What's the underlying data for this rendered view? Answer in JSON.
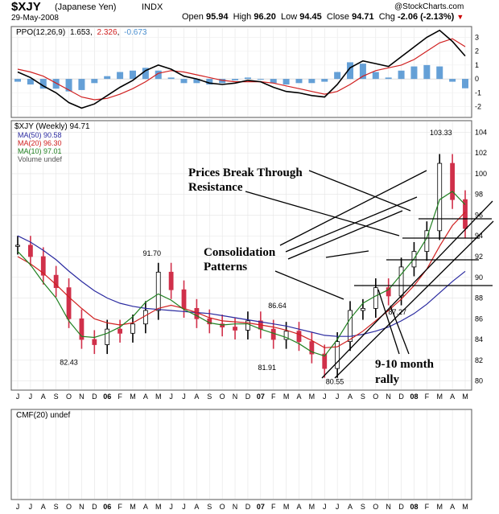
{
  "header": {
    "symbol": "$XJY",
    "name": "(Japanese Yen)",
    "exchange": "INDX",
    "date": "29-May-2008",
    "open_label": "Open",
    "open": "95.94",
    "high_label": "High",
    "high": "96.20",
    "low_label": "Low",
    "low": "94.45",
    "close_label": "Close",
    "close": "94.71",
    "chg_label": "Chg",
    "chg": "-2.06 (-2.13%)",
    "source": "@StockCharts.com"
  },
  "legend": {
    "ppo_label": "PPO(12,26,9)",
    "ppo_v1": "1.653",
    "ppo_v2": "2.326",
    "ppo_v3": "-0.673",
    "price_label": "$XJY (Weekly) 94.71",
    "ma50": "MA(50) 90.58",
    "ma20": "MA(20) 96.30",
    "ma10": "MA(10) 97.01",
    "volume": "Volume undef",
    "cmf": "CMF(20) undef"
  },
  "colors": {
    "ma50": "#2a2aa0",
    "ma20": "#d02020",
    "ma10": "#208020",
    "bars": "#d0304a",
    "hist": "#4a8fd0",
    "ppo_fast": "#000000",
    "ppo_signal": "#d02020"
  },
  "annotations": {
    "breakout": "Prices Break Through",
    "breakout2": "Resistance",
    "consolidation": "Consolidation",
    "consolidation2": "Patterns",
    "rally": "9-10 month",
    "rally2": "rally"
  },
  "chart_data": [
    {
      "type": "bar",
      "title": "$XJY (Weekly)",
      "x": [
        "J",
        "J",
        "A",
        "S",
        "O",
        "N",
        "D",
        "06",
        "F",
        "M",
        "A",
        "M",
        "J",
        "J",
        "A",
        "S",
        "O",
        "N",
        "D",
        "07",
        "F",
        "M",
        "A",
        "M",
        "J",
        "J",
        "A",
        "S",
        "O",
        "N",
        "D",
        "08",
        "F",
        "M",
        "A",
        "M"
      ],
      "y_ticks": [
        80,
        82,
        84,
        86,
        88,
        90,
        92,
        94,
        96,
        98,
        100,
        102,
        104
      ],
      "ylim": [
        79.5,
        104.5
      ],
      "peak_labels": [
        {
          "x_index": 4,
          "value": 82.43,
          "label": "82.43"
        },
        {
          "x_index": 10.5,
          "value": 91.7,
          "label": "91.70"
        },
        {
          "x_index": 19.5,
          "value": 81.91,
          "label": "81.91"
        },
        {
          "x_index": 20.3,
          "value": 86.64,
          "label": "86.64"
        },
        {
          "x_index": 24.8,
          "value": 80.55,
          "label": "80.55"
        },
        {
          "x_index": 29.7,
          "value": 87.27,
          "label": "87.27"
        },
        {
          "x_index": 33.1,
          "value": 103.33,
          "label": "103.33"
        }
      ],
      "series": [
        {
          "name": "$XJY",
          "values": [
            93.1,
            92.0,
            90.2,
            89.0,
            86.0,
            84.0,
            83.5,
            85.0,
            84.6,
            85.5,
            86.8,
            90.5,
            88.8,
            87.0,
            86.0,
            85.5,
            85.2,
            84.9,
            85.8,
            85.0,
            84.0,
            84.8,
            83.8,
            82.6,
            81.2,
            83.8,
            86.8,
            87.0,
            89.0,
            88.2,
            91.0,
            92.5,
            94.5,
            101.0,
            97.5,
            94.71
          ]
        },
        {
          "name": "MA(50) 90.58",
          "values": [
            94.0,
            93.4,
            92.6,
            91.7,
            90.6,
            89.6,
            88.7,
            88.0,
            87.5,
            87.2,
            87.0,
            86.9,
            86.8,
            86.7,
            86.6,
            86.5,
            86.3,
            86.1,
            85.9,
            85.7,
            85.5,
            85.3,
            85.0,
            84.7,
            84.4,
            84.3,
            84.3,
            84.5,
            84.8,
            85.2,
            85.8,
            86.5,
            87.4,
            88.5,
            89.6,
            90.58
          ]
        },
        {
          "name": "MA(20) 96.30",
          "values": [
            92.0,
            91.3,
            90.4,
            89.3,
            88.1,
            87.0,
            86.0,
            85.6,
            85.4,
            85.6,
            86.3,
            87.0,
            87.3,
            87.0,
            86.6,
            86.1,
            85.8,
            85.7,
            85.6,
            85.4,
            85.2,
            84.9,
            84.5,
            83.9,
            83.2,
            83.3,
            84.0,
            84.8,
            85.8,
            86.8,
            87.9,
            89.2,
            90.8,
            93.0,
            95.0,
            96.3
          ]
        },
        {
          "name": "MA(10) 97.01",
          "values": [
            92.5,
            91.2,
            89.5,
            88.0,
            85.8,
            84.3,
            84.2,
            84.6,
            85.2,
            86.2,
            87.6,
            88.4,
            87.8,
            86.9,
            86.3,
            85.6,
            85.4,
            85.5,
            85.5,
            85.0,
            84.6,
            84.2,
            83.6,
            82.8,
            82.4,
            84.0,
            86.0,
            87.5,
            88.2,
            88.8,
            90.3,
            91.8,
            93.8,
            97.5,
            98.3,
            97.01
          ]
        }
      ]
    },
    {
      "type": "line",
      "title": "PPO(12,26,9)",
      "y_ticks": [
        -2,
        -1,
        0,
        1,
        2,
        3
      ],
      "ylim": [
        -2.6,
        3.6
      ],
      "series": [
        {
          "name": "PPO",
          "values": [
            0.5,
            0.1,
            -0.5,
            -1.0,
            -1.7,
            -2.1,
            -1.8,
            -1.2,
            -0.6,
            -0.1,
            0.6,
            1.0,
            0.7,
            0.2,
            0.0,
            -0.3,
            -0.4,
            -0.3,
            -0.1,
            -0.2,
            -0.6,
            -0.9,
            -1.0,
            -1.2,
            -1.3,
            -0.4,
            0.8,
            1.3,
            1.1,
            0.9,
            1.6,
            2.3,
            3.0,
            3.5,
            2.7,
            1.653
          ]
        },
        {
          "name": "Signal",
          "values": [
            0.7,
            0.5,
            0.2,
            -0.3,
            -0.8,
            -1.3,
            -1.5,
            -1.4,
            -1.1,
            -0.7,
            -0.2,
            0.4,
            0.6,
            0.5,
            0.3,
            0.1,
            -0.1,
            -0.2,
            -0.2,
            -0.2,
            -0.3,
            -0.5,
            -0.7,
            -0.9,
            -1.1,
            -0.9,
            -0.4,
            0.2,
            0.6,
            0.8,
            1.0,
            1.4,
            2.0,
            2.6,
            2.9,
            2.326
          ]
        },
        {
          "name": "Histogram",
          "values": [
            -0.2,
            -0.4,
            -0.7,
            -0.7,
            -0.9,
            -0.8,
            -0.3,
            0.2,
            0.5,
            0.6,
            0.8,
            0.6,
            0.1,
            -0.3,
            -0.3,
            -0.4,
            -0.3,
            -0.1,
            0.1,
            0.0,
            -0.3,
            -0.4,
            -0.3,
            -0.3,
            -0.2,
            0.5,
            1.2,
            1.1,
            0.5,
            0.1,
            0.6,
            0.9,
            1.0,
            0.9,
            -0.2,
            -0.673
          ]
        }
      ]
    }
  ]
}
